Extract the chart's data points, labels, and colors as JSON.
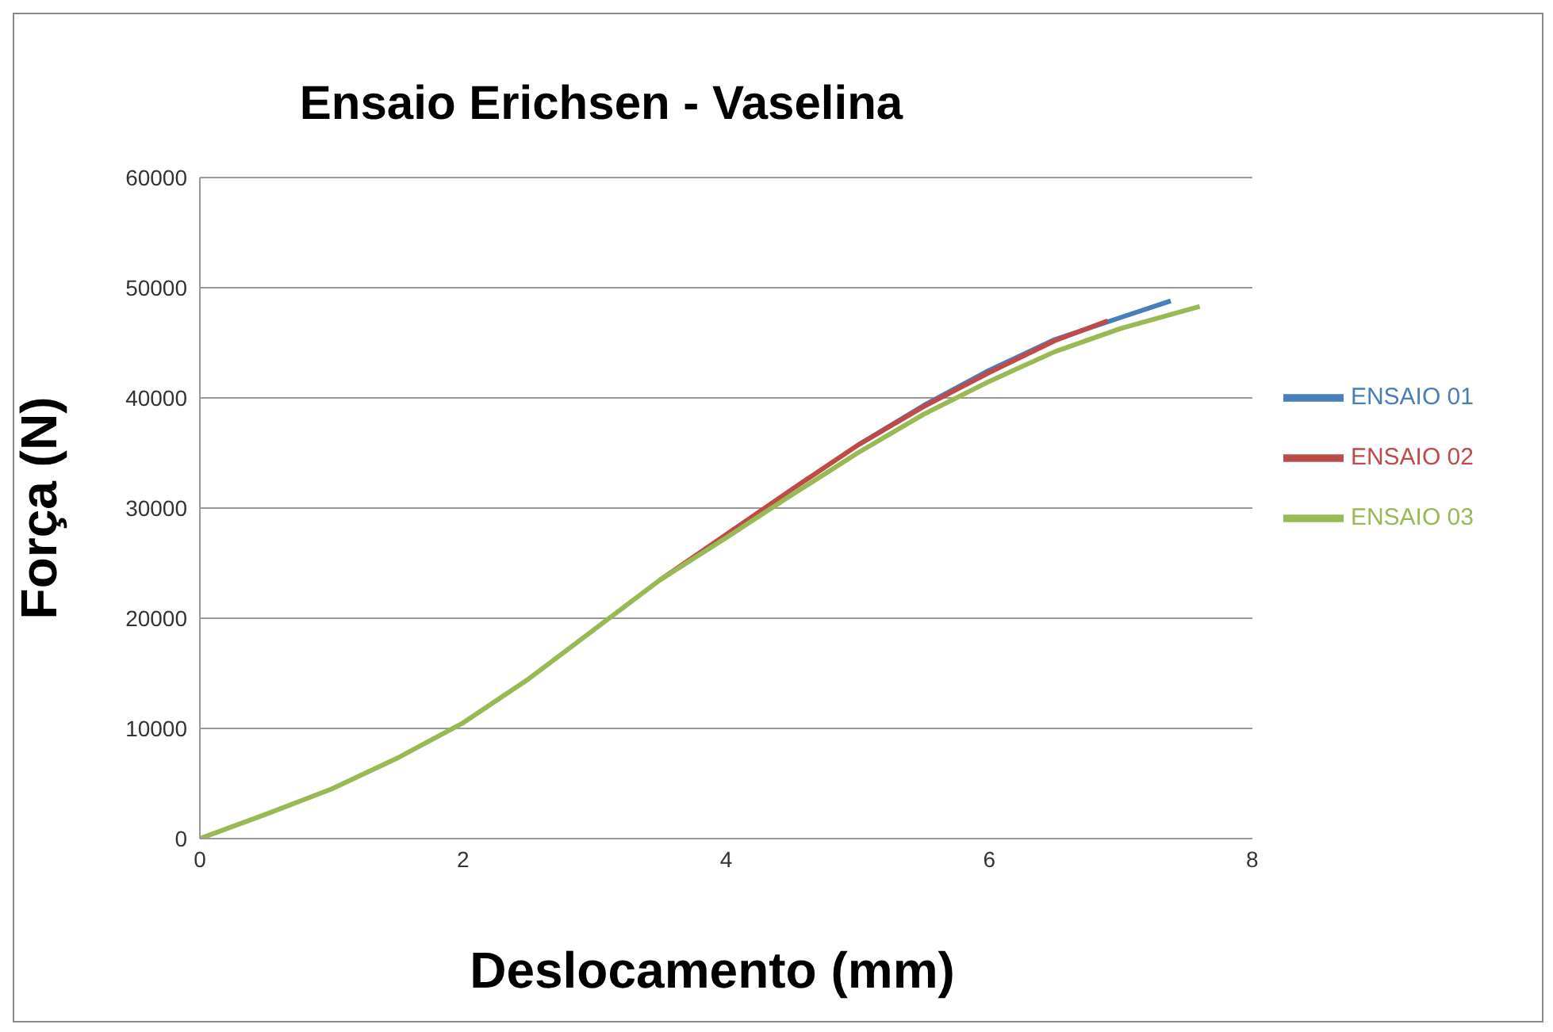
{
  "chart_data": {
    "type": "line",
    "title": "Ensaio Erichsen - Vaselina",
    "xlabel": "Deslocamento (mm)",
    "ylabel": "Força (N)",
    "xlim": [
      0,
      8
    ],
    "xticks": [
      0,
      2,
      4,
      6,
      8
    ],
    "ylim": [
      0,
      60000
    ],
    "yticks": [
      0,
      10000,
      20000,
      30000,
      40000,
      50000,
      60000
    ],
    "grid": "y",
    "legend": "right",
    "marker": "none",
    "series": [
      {
        "name": "ENSAIO 01",
        "color": "#4a7ebb",
        "x": [
          5,
          5.5,
          6,
          6.5,
          7,
          7.38
        ],
        "values": [
          35700,
          39300,
          42500,
          45300,
          47300,
          48800
        ]
      },
      {
        "name": "ENSAIO 02",
        "color": "#be4b48",
        "x": [
          3.5,
          4,
          4.5,
          5,
          5.5,
          6,
          6.5,
          6.9
        ],
        "values": [
          23500,
          27600,
          31700,
          35700,
          39200,
          42300,
          45200,
          47000
        ]
      },
      {
        "name": "ENSAIO 03",
        "color": "#98b954",
        "x": [
          0,
          0.5,
          1,
          1.5,
          2,
          2.5,
          3,
          3.5,
          4,
          4.5,
          5,
          5.5,
          6,
          6.5,
          7,
          7.6
        ],
        "values": [
          0,
          2200,
          4500,
          7300,
          10500,
          14500,
          19000,
          23500,
          27300,
          31200,
          35000,
          38500,
          41500,
          44200,
          46300,
          48300
        ]
      }
    ]
  }
}
